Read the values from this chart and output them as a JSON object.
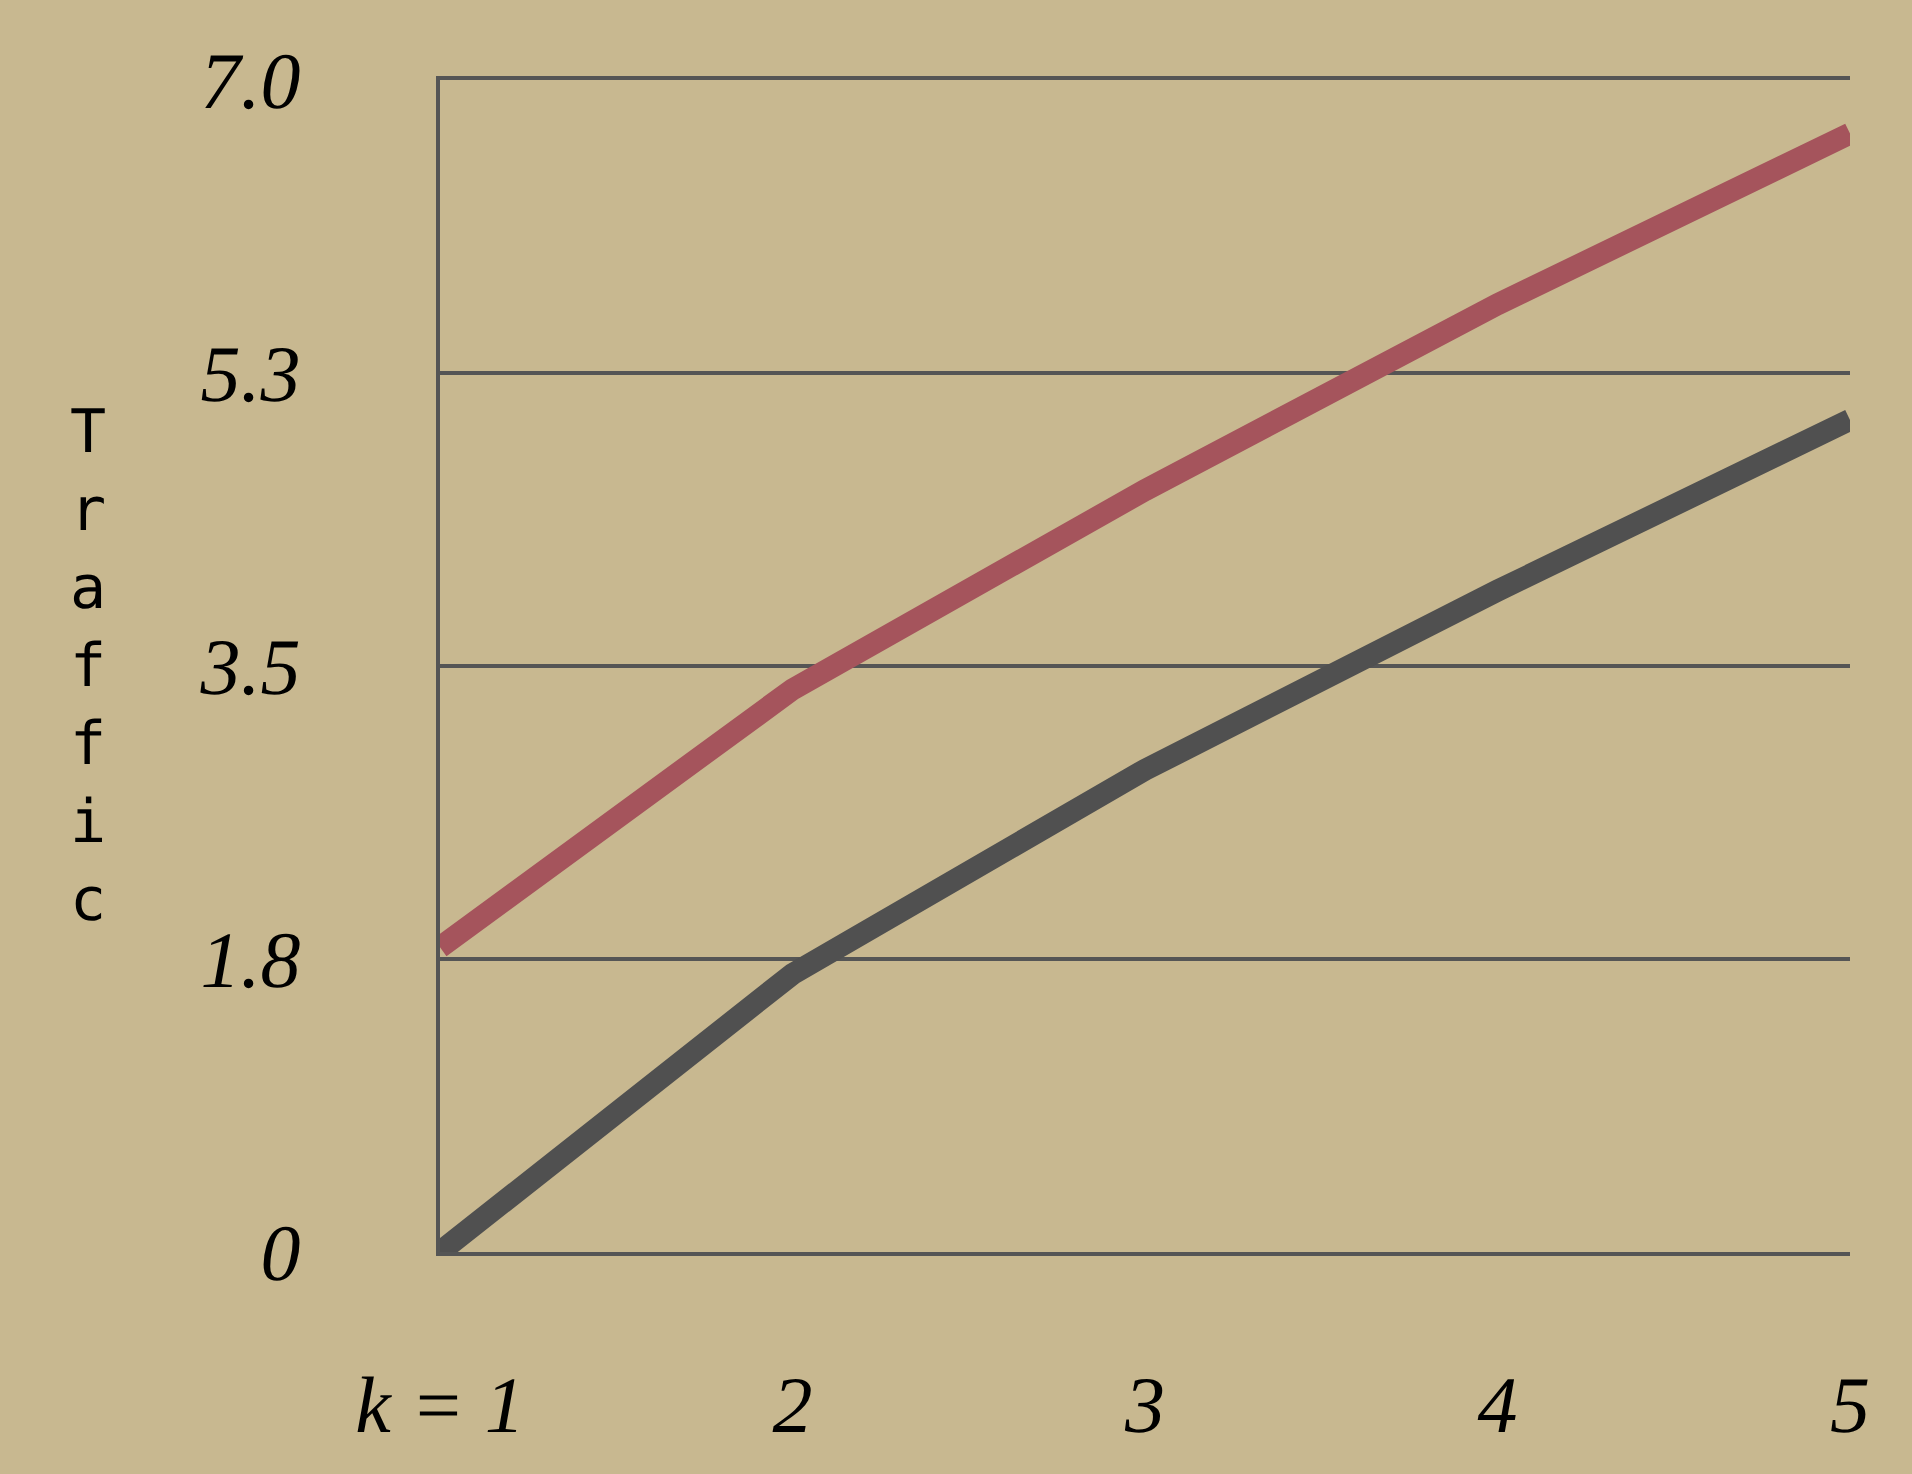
{
  "chart_data": {
    "type": "line",
    "ylabel": "Traffic",
    "categories": [
      "k = 1",
      "2",
      "3",
      "4",
      "5"
    ],
    "series": [
      {
        "color": "#a5545c",
        "values": [
          1.82,
          3.36,
          4.55,
          5.66,
          6.68
        ]
      },
      {
        "color": "#505050",
        "values": [
          0,
          1.66,
          2.88,
          3.95,
          4.97
        ]
      }
    ],
    "ylim": [
      0,
      7.0
    ],
    "yticks": [
      0,
      {
        "value": 1.75,
        "label": "1.8"
      },
      3.5,
      {
        "value": 5.25,
        "label": "5.3"
      },
      {
        "value": 7.0,
        "label": "7.0"
      }
    ],
    "grid": "y",
    "marker": "none",
    "line_style": "solid"
  }
}
